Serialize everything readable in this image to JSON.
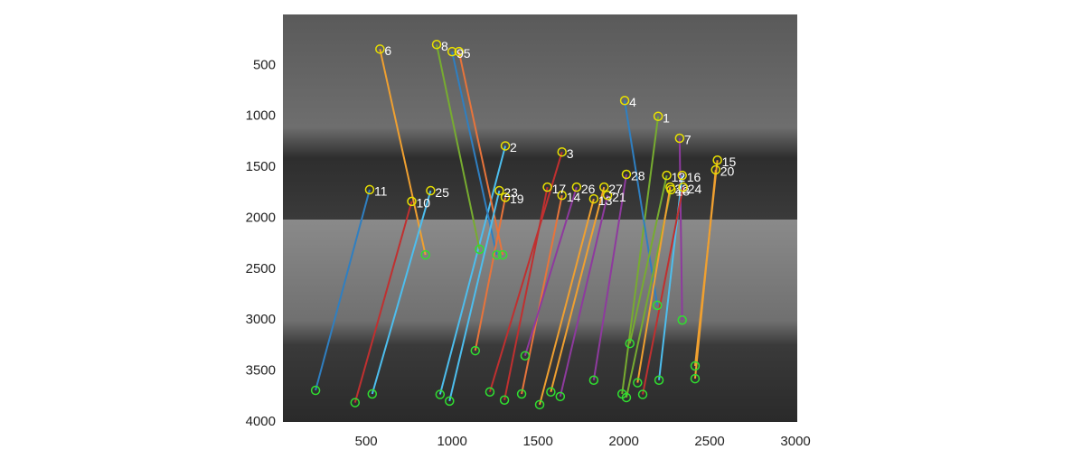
{
  "chart_data": {
    "type": "matches",
    "xlim": [
      15,
      3010
    ],
    "ylim": [
      0,
      4000
    ],
    "y_reversed": true,
    "xticks": [
      500,
      1000,
      1500,
      2000,
      2500,
      3000
    ],
    "yticks": [
      500,
      1000,
      1500,
      2000,
      2500,
      3000,
      3500,
      4000
    ],
    "matches": [
      {
        "label": "1",
        "x1": 2200,
        "y1": 1000,
        "x2": 1990,
        "y2": 3725,
        "color": "#77ac30"
      },
      {
        "label": "2",
        "x1": 1310,
        "y1": 1290,
        "x2": 930,
        "y2": 3730,
        "color": "#4dbeee"
      },
      {
        "label": "3",
        "x1": 1640,
        "y1": 1350,
        "x2": 1220,
        "y2": 3705,
        "color": "#c03030"
      },
      {
        "label": "4",
        "x1": 2005,
        "y1": 845,
        "x2": 2195,
        "y2": 2855,
        "color": "#2f7fc1"
      },
      {
        "label": "5",
        "x1": 1040,
        "y1": 365,
        "x2": 1295,
        "y2": 2360,
        "color": "#e8743b"
      },
      {
        "label": "6",
        "x1": 580,
        "y1": 340,
        "x2": 845,
        "y2": 2360,
        "color": "#f0a030"
      },
      {
        "label": "7",
        "x1": 2325,
        "y1": 1215,
        "x2": 2340,
        "y2": 3000,
        "color": "#8e3a9e"
      },
      {
        "label": "8",
        "x1": 910,
        "y1": 295,
        "x2": 1160,
        "y2": 2305,
        "color": "#77ac30"
      },
      {
        "label": "9",
        "x1": 1000,
        "y1": 365,
        "x2": 1260,
        "y2": 2360,
        "color": "#2f7fc1"
      },
      {
        "label": "10",
        "x1": 765,
        "y1": 1835,
        "x2": 435,
        "y2": 3810,
        "color": "#c03030"
      },
      {
        "label": "11",
        "x1": 520,
        "y1": 1720,
        "x2": 205,
        "y2": 3690,
        "color": "#2f7fc1"
      },
      {
        "label": "12",
        "x1": 2250,
        "y1": 1580,
        "x2": 2035,
        "y2": 3230,
        "color": "#77ac30"
      },
      {
        "label": "13",
        "x1": 1825,
        "y1": 1810,
        "x2": 1510,
        "y2": 3830,
        "color": "#f0a030"
      },
      {
        "label": "14",
        "x1": 1640,
        "y1": 1775,
        "x2": 1405,
        "y2": 3725,
        "color": "#e8743b"
      },
      {
        "label": "15",
        "x1": 2545,
        "y1": 1430,
        "x2": 2415,
        "y2": 3450,
        "color": "#f0a030"
      },
      {
        "label": "16",
        "x1": 2340,
        "y1": 1580,
        "x2": 2205,
        "y2": 3590,
        "color": "#4dbeee"
      },
      {
        "label": "17",
        "x1": 1555,
        "y1": 1695,
        "x2": 1305,
        "y2": 3785,
        "color": "#c03030"
      },
      {
        "label": "18",
        "x1": 2275,
        "y1": 1720,
        "x2": 2015,
        "y2": 3760,
        "color": "#77ac30"
      },
      {
        "label": "19",
        "x1": 1310,
        "y1": 1795,
        "x2": 1135,
        "y2": 3300,
        "color": "#e8743b"
      },
      {
        "label": "20",
        "x1": 2535,
        "y1": 1525,
        "x2": 2415,
        "y2": 3575,
        "color": "#f0a030"
      },
      {
        "label": "21",
        "x1": 1905,
        "y1": 1775,
        "x2": 1630,
        "y2": 3750,
        "color": "#8e3a9e"
      },
      {
        "label": "22",
        "x1": 2270,
        "y1": 1695,
        "x2": 2080,
        "y2": 3615,
        "color": "#f0a030"
      },
      {
        "label": "23",
        "x1": 1275,
        "y1": 1730,
        "x2": 985,
        "y2": 3795,
        "color": "#4dbeee"
      },
      {
        "label": "24",
        "x1": 2345,
        "y1": 1695,
        "x2": 2110,
        "y2": 3730,
        "color": "#c03030"
      },
      {
        "label": "25",
        "x1": 875,
        "y1": 1730,
        "x2": 535,
        "y2": 3725,
        "color": "#4dbeee"
      },
      {
        "label": "26",
        "x1": 1725,
        "y1": 1695,
        "x2": 1425,
        "y2": 3350,
        "color": "#8e3a9e"
      },
      {
        "label": "27",
        "x1": 1885,
        "y1": 1695,
        "x2": 1575,
        "y2": 3705,
        "color": "#f0a030"
      },
      {
        "label": "28",
        "x1": 2015,
        "y1": 1570,
        "x2": 1825,
        "y2": 3590,
        "color": "#8e3a9e"
      }
    ]
  }
}
